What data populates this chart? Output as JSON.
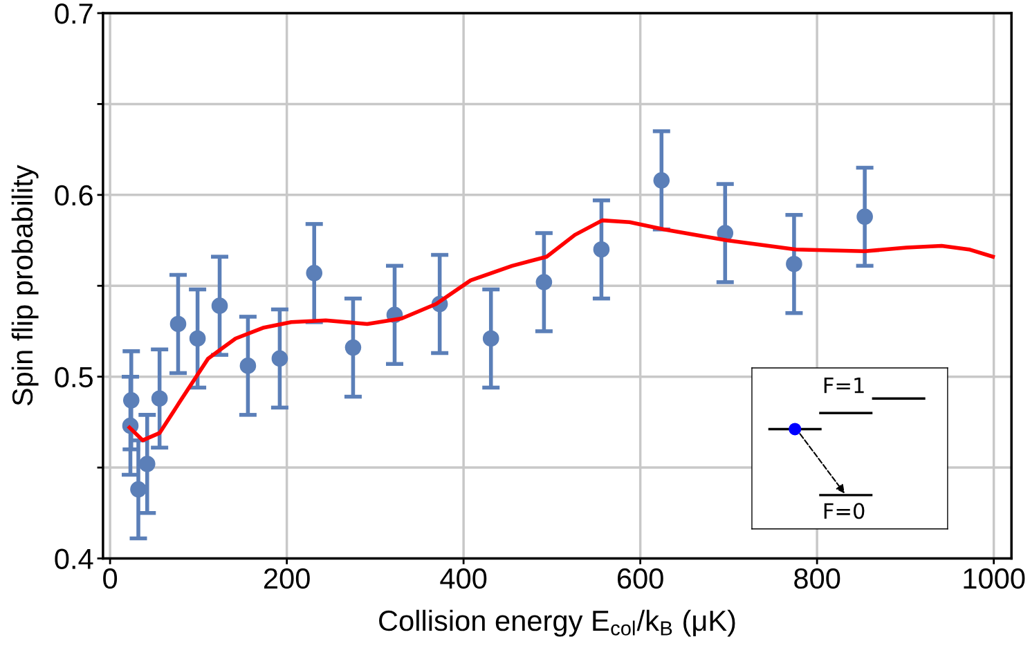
{
  "chart_data": {
    "type": "scatter",
    "xlabel": "Collision energy E$_{col}$/k$_{B}$ (μK)",
    "ylabel": "Spin flip probability",
    "xlim": [
      -8,
      1020
    ],
    "ylim": [
      0.4,
      0.7
    ],
    "xticks": [
      0,
      200,
      400,
      600,
      800,
      1000
    ],
    "yticks": [
      0.4,
      {
        "value": 0.45,
        "label": null
      },
      0.5,
      {
        "value": 0.55,
        "label": null
      },
      0.6,
      {
        "value": 0.65,
        "label": null
      },
      0.7
    ],
    "grid": true,
    "marker": "circle",
    "annotations": [
      "F=1",
      "F=0"
    ],
    "series": [
      {
        "color": "#5b7fb8",
        "x": [
          23,
          24,
          32,
          42,
          56,
          77,
          99,
          124,
          156,
          192,
          231,
          275,
          322,
          373,
          431,
          491,
          556,
          624,
          696,
          774,
          854
        ],
        "values": [
          0.473,
          0.487,
          0.438,
          0.452,
          0.488,
          0.529,
          0.521,
          0.539,
          0.506,
          0.51,
          0.557,
          0.516,
          0.534,
          0.54,
          0.521,
          0.552,
          0.57,
          0.608,
          0.579,
          0.562,
          0.588
        ],
        "errors": [
          0.027,
          0.027,
          0.027,
          0.027,
          0.027,
          0.027,
          0.027,
          0.027,
          0.027,
          0.027,
          0.027,
          0.027,
          0.027,
          0.027,
          0.027,
          0.027,
          0.027,
          0.027,
          0.027,
          0.027,
          0.027
        ]
      },
      {
        "type": "line",
        "color": "#ff0000",
        "marker": "none",
        "x": [
          22,
          37,
          56,
          80,
          111,
          142,
          174,
          205,
          244,
          291,
          330,
          369,
          408,
          455,
          494,
          526,
          557,
          588,
          627,
          698,
          776,
          854,
          901,
          941,
          972,
          999
        ],
        "values": [
          0.472,
          0.465,
          0.469,
          0.487,
          0.51,
          0.521,
          0.527,
          0.53,
          0.531,
          0.529,
          0.532,
          0.54,
          0.553,
          0.561,
          0.566,
          0.578,
          0.586,
          0.585,
          0.581,
          0.575,
          0.57,
          0.569,
          0.571,
          0.572,
          0.57,
          0.566
        ]
      }
    ]
  }
}
